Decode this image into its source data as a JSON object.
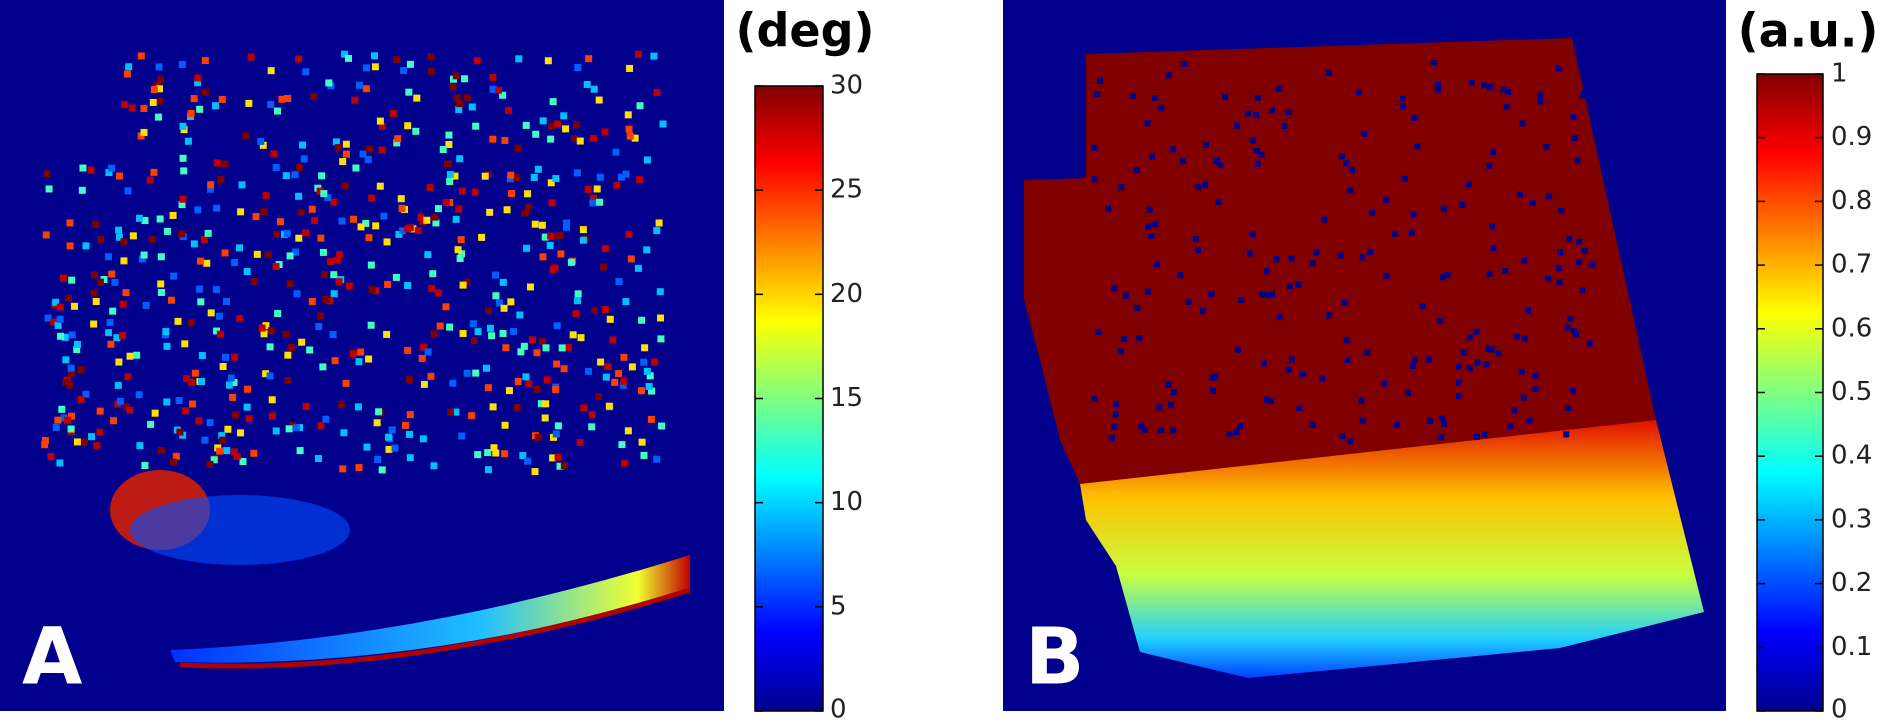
{
  "chart_data": [
    {
      "type": "heatmap",
      "panel_label": "A",
      "colorbar_label": "(deg)",
      "colormap": "jet",
      "clim": [
        0,
        30
      ],
      "cticks": [
        0,
        5,
        10,
        15,
        20,
        25,
        30
      ]
    },
    {
      "type": "heatmap",
      "panel_label": "B",
      "colorbar_label": "(a.u.)",
      "colormap": "jet",
      "clim": [
        0,
        1
      ],
      "cticks": [
        0,
        0.1,
        0.2,
        0.3,
        0.4,
        0.5,
        0.6,
        0.7,
        0.8,
        0.9,
        1
      ]
    }
  ]
}
